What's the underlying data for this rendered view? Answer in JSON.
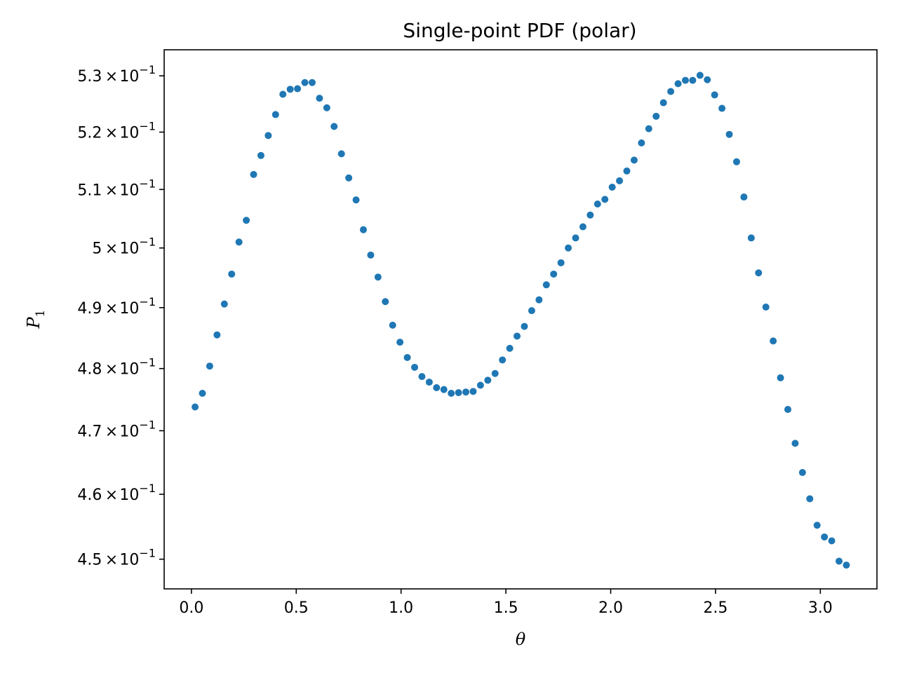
{
  "chart_data": {
    "type": "scatter",
    "title": "Single-point PDF (polar)",
    "xlabel": "θ",
    "ylabel": "P",
    "ylabel_subscript": "1",
    "xlim": [
      -0.13,
      3.27
    ],
    "ylim": [
      0.4455,
      0.5347
    ],
    "x_ticks": [
      0.0,
      0.5,
      1.0,
      1.5,
      2.0,
      2.5,
      3.0
    ],
    "x_tick_labels": [
      "0.0",
      "0.5",
      "1.0",
      "1.5",
      "2.0",
      "2.5",
      "3.0"
    ],
    "y_ticks": [
      {
        "value": 0.53,
        "mantissa": "5.3",
        "base": "10",
        "exponent": "−1"
      },
      {
        "value": 0.52,
        "mantissa": "5.2",
        "base": "10",
        "exponent": "−1"
      },
      {
        "value": 0.51,
        "mantissa": "5.1",
        "base": "10",
        "exponent": "−1"
      },
      {
        "value": 0.5,
        "mantissa": "5",
        "base": "10",
        "exponent": "−1"
      },
      {
        "value": 0.49,
        "mantissa": "4.9",
        "base": "10",
        "exponent": "−1"
      },
      {
        "value": 0.48,
        "mantissa": "4.8",
        "base": "10",
        "exponent": "−1"
      },
      {
        "value": 0.47,
        "mantissa": "4.7",
        "base": "10",
        "exponent": "−1"
      },
      {
        "value": 0.46,
        "mantissa": "4.6",
        "base": "10",
        "exponent": "−1"
      },
      {
        "value": 0.45,
        "mantissa": "4.5",
        "base": "10",
        "exponent": "−1"
      }
    ],
    "y_scale": "log",
    "grid": false,
    "series": [
      {
        "color": "#1f77b4",
        "x": [
          0.0175,
          0.0524,
          0.0873,
          0.1222,
          0.1571,
          0.192,
          0.2269,
          0.2618,
          0.2967,
          0.3316,
          0.3665,
          0.4014,
          0.4363,
          0.4712,
          0.5061,
          0.5411,
          0.576,
          0.6109,
          0.6458,
          0.6807,
          0.7156,
          0.7505,
          0.7854,
          0.8203,
          0.8552,
          0.8901,
          0.925,
          0.9599,
          0.9948,
          1.0297,
          1.0647,
          1.0996,
          1.1345,
          1.1694,
          1.2043,
          1.2392,
          1.2741,
          1.309,
          1.3439,
          1.3788,
          1.4137,
          1.4486,
          1.4835,
          1.5184,
          1.5533,
          1.5882,
          1.6232,
          1.6581,
          1.693,
          1.7279,
          1.7628,
          1.7977,
          1.8326,
          1.8675,
          1.9024,
          1.9373,
          1.9722,
          2.0071,
          2.042,
          2.0769,
          2.1118,
          2.1468,
          2.1817,
          2.2166,
          2.2515,
          2.2864,
          2.3213,
          2.3562,
          2.3911,
          2.426,
          2.4609,
          2.4958,
          2.5307,
          2.5656,
          2.6005,
          2.6354,
          2.6704,
          2.7053,
          2.7402,
          2.7751,
          2.81,
          2.8449,
          2.8798,
          2.9147,
          2.9496,
          2.9845,
          3.0194,
          3.0543,
          3.0892,
          3.1241
        ],
        "y": [
          0.4738,
          0.476,
          0.4804,
          0.4855,
          0.4906,
          0.4956,
          0.501,
          0.5047,
          0.5126,
          0.5159,
          0.5194,
          0.5231,
          0.5267,
          0.5276,
          0.5277,
          0.5288,
          0.5288,
          0.526,
          0.5243,
          0.521,
          0.5162,
          0.512,
          0.5082,
          0.5031,
          0.4988,
          0.4951,
          0.491,
          0.4871,
          0.4843,
          0.4818,
          0.4802,
          0.4787,
          0.4778,
          0.4769,
          0.4766,
          0.476,
          0.4761,
          0.4762,
          0.4763,
          0.4773,
          0.4781,
          0.4792,
          0.4814,
          0.4833,
          0.4853,
          0.4869,
          0.4895,
          0.4913,
          0.4938,
          0.4956,
          0.4975,
          0.5,
          0.5017,
          0.5036,
          0.5056,
          0.5075,
          0.5083,
          0.5104,
          0.5115,
          0.5132,
          0.5151,
          0.5181,
          0.5206,
          0.5228,
          0.5252,
          0.5272,
          0.5286,
          0.5292,
          0.5292,
          0.5301,
          0.5293,
          0.5266,
          0.5242,
          0.5196,
          0.5148,
          0.5087,
          0.5017,
          0.4958,
          0.4901,
          0.4845,
          0.4785,
          0.4734,
          0.468,
          0.4634,
          0.4593,
          0.4552,
          0.4534,
          0.4528,
          0.4497,
          0.4491
        ]
      }
    ]
  }
}
